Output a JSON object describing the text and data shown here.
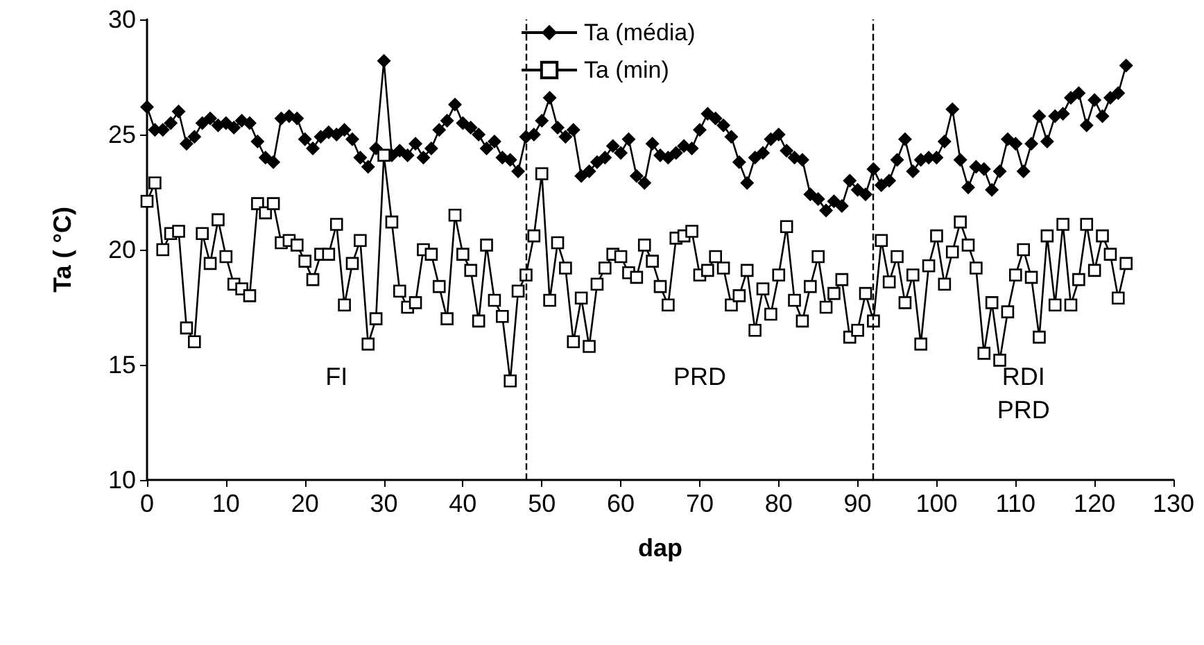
{
  "chart_data": {
    "type": "line",
    "xlabel": "dap",
    "ylabel": "Ta ( °C)",
    "x": [
      0,
      1,
      2,
      3,
      4,
      5,
      6,
      7,
      8,
      9,
      10,
      11,
      12,
      13,
      14,
      15,
      16,
      17,
      18,
      19,
      20,
      21,
      22,
      23,
      24,
      25,
      26,
      27,
      28,
      29,
      30,
      31,
      32,
      33,
      34,
      35,
      36,
      37,
      38,
      39,
      40,
      41,
      42,
      43,
      44,
      45,
      46,
      47,
      48,
      49,
      50,
      51,
      52,
      53,
      54,
      55,
      56,
      57,
      58,
      59,
      60,
      61,
      62,
      63,
      64,
      65,
      66,
      67,
      68,
      69,
      70,
      71,
      72,
      73,
      74,
      75,
      76,
      77,
      78,
      79,
      80,
      81,
      82,
      83,
      84,
      85,
      86,
      87,
      88,
      89,
      90,
      91,
      92,
      93,
      94,
      95,
      96,
      97,
      98,
      99,
      100,
      101,
      102,
      103,
      104,
      105,
      106,
      107,
      108,
      109,
      110,
      111,
      112,
      113,
      114,
      115,
      116,
      117,
      118,
      119,
      120,
      121,
      122,
      123,
      124
    ],
    "series": [
      {
        "name": "Ta (média)",
        "color": "#000000",
        "marker": "diamond",
        "values": [
          26.2,
          25.2,
          25.2,
          25.5,
          26.0,
          24.6,
          24.9,
          25.5,
          25.7,
          25.4,
          25.5,
          25.3,
          25.6,
          25.5,
          24.7,
          24.0,
          23.8,
          25.7,
          25.8,
          25.7,
          24.8,
          24.4,
          24.9,
          25.1,
          25.0,
          25.2,
          24.8,
          24.0,
          23.6,
          24.4,
          28.2,
          24.1,
          24.3,
          24.1,
          24.6,
          24.0,
          24.4,
          25.2,
          25.6,
          26.3,
          25.5,
          25.3,
          25.0,
          24.4,
          24.7,
          24.0,
          23.9,
          23.4,
          24.9,
          25.0,
          25.6,
          26.6,
          25.3,
          24.9,
          25.2,
          23.2,
          23.4,
          23.8,
          24.0,
          24.5,
          24.2,
          24.8,
          23.2,
          22.9,
          24.6,
          24.1,
          24.0,
          24.2,
          24.5,
          24.4,
          25.2,
          25.9,
          25.7,
          25.4,
          24.9,
          23.8,
          22.9,
          24.0,
          24.2,
          24.8,
          25.0,
          24.3,
          24.0,
          23.9,
          22.4,
          22.2,
          21.7,
          22.1,
          21.9,
          23.0,
          22.6,
          22.4,
          23.5,
          22.8,
          23.0,
          23.9,
          24.8,
          23.4,
          23.9,
          24.0,
          24.0,
          24.7,
          26.1,
          23.9,
          22.7,
          23.6,
          23.5,
          22.6,
          23.4,
          24.8,
          24.6,
          23.4,
          24.6,
          25.8,
          24.7,
          25.8,
          25.9,
          26.6,
          26.8,
          25.4,
          26.5,
          25.8,
          26.6,
          26.8,
          28.0
        ]
      },
      {
        "name": "Ta (min)",
        "color": "#000000",
        "marker": "square",
        "values": [
          22.1,
          22.9,
          20.0,
          20.7,
          20.8,
          16.6,
          16.0,
          20.7,
          19.4,
          21.3,
          19.7,
          18.5,
          18.3,
          18.0,
          22.0,
          21.6,
          22.0,
          20.3,
          20.4,
          20.2,
          19.5,
          18.7,
          19.8,
          19.8,
          21.1,
          17.6,
          19.4,
          20.4,
          15.9,
          17.0,
          24.1,
          21.2,
          18.2,
          17.5,
          17.7,
          20.0,
          19.8,
          18.4,
          17.0,
          21.5,
          19.8,
          19.1,
          16.9,
          20.2,
          17.8,
          17.1,
          14.3,
          18.2,
          18.9,
          20.6,
          23.3,
          17.8,
          20.3,
          19.2,
          16.0,
          17.9,
          15.8,
          18.5,
          19.2,
          19.8,
          19.7,
          19.0,
          18.8,
          20.2,
          19.5,
          18.4,
          17.6,
          20.5,
          20.6,
          20.8,
          18.9,
          19.1,
          19.7,
          19.2,
          17.6,
          18.0,
          19.1,
          16.5,
          18.3,
          17.2,
          18.9,
          21.0,
          17.8,
          16.9,
          18.4,
          19.7,
          17.5,
          18.1,
          18.7,
          16.2,
          16.5,
          18.1,
          16.9,
          20.4,
          18.6,
          19.7,
          17.7,
          18.9,
          15.9,
          19.3,
          20.6,
          18.5,
          19.9,
          21.2,
          20.2,
          19.2,
          15.5,
          17.7,
          15.2,
          17.3,
          18.9,
          20.0,
          18.8,
          16.2,
          20.6,
          17.6,
          21.1,
          17.6,
          18.7,
          21.1,
          19.1,
          20.6,
          19.8,
          17.9,
          19.4
        ]
      }
    ],
    "xlim": [
      0,
      130
    ],
    "xticks": [
      0,
      10,
      20,
      30,
      40,
      50,
      60,
      70,
      80,
      90,
      100,
      110,
      120,
      130
    ],
    "ylim": [
      10,
      30
    ],
    "yticks": [
      10,
      15,
      20,
      25,
      30
    ],
    "ref_lines": [
      {
        "axis": "x",
        "value": 48,
        "line_style": "dashed"
      },
      {
        "axis": "x",
        "value": 92,
        "line_style": "dashed"
      }
    ],
    "annotations": [
      "FI",
      "PRD",
      "RDI\nPRD"
    ],
    "legend": "top",
    "grid": false,
    "line_style": "solid"
  }
}
